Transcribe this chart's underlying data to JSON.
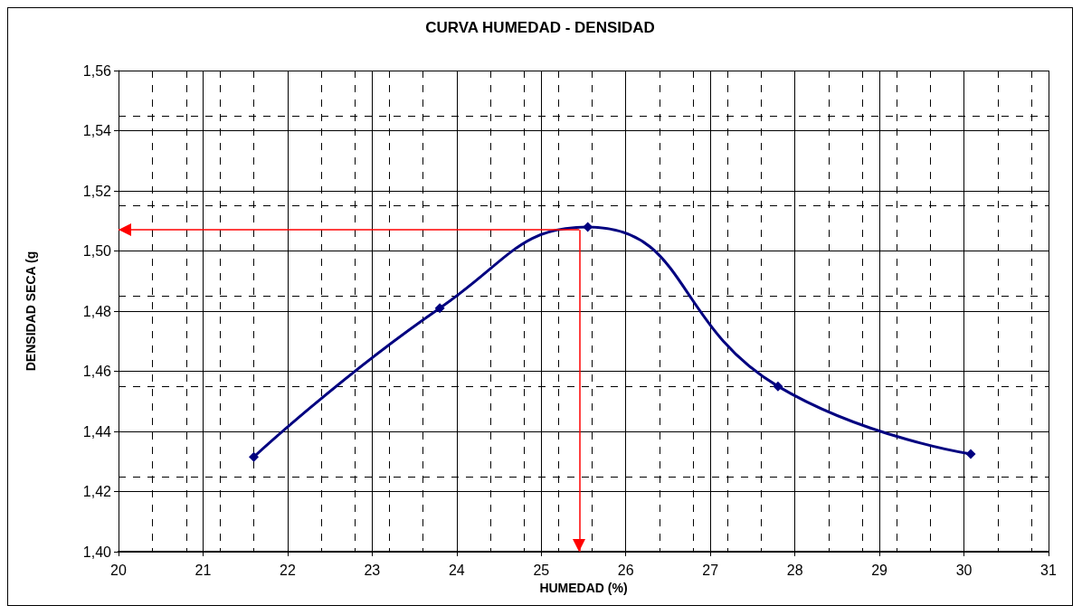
{
  "chart_data": {
    "type": "line",
    "title": "CURVA HUMEDAD - DENSIDAD",
    "xlabel": "HUMEDAD (%)",
    "ylabel": "DENSIDAD SECA (g",
    "x": [
      21.6,
      23.8,
      25.55,
      27.8,
      30.08
    ],
    "series": [
      {
        "color": "#000080",
        "values": [
          1.4315,
          1.481,
          1.508,
          1.455,
          1.4325
        ]
      }
    ],
    "xlim": [
      20,
      31
    ],
    "xticks": [
      20,
      21,
      22,
      23,
      24,
      25,
      26,
      27,
      28,
      29,
      30,
      31
    ],
    "ylim": [
      1.4,
      1.56
    ],
    "yticks": [
      {
        "value": 1.4,
        "label": "1,40"
      },
      {
        "value": 1.42,
        "label": "1,42"
      },
      {
        "value": 1.44,
        "label": "1,44"
      },
      {
        "value": 1.46,
        "label": "1,46"
      },
      {
        "value": 1.48,
        "label": "1,48"
      },
      {
        "value": 1.5,
        "label": "1,50"
      },
      {
        "value": 1.52,
        "label": "1,52"
      },
      {
        "value": 1.54,
        "label": "1,54"
      },
      {
        "value": 1.56,
        "label": "1,56"
      }
    ],
    "ref_lines": [
      {
        "axis": "y",
        "value": 1.507,
        "color": "#ff0000"
      },
      {
        "axis": "x",
        "value": 25.45,
        "color": "#ff0000"
      }
    ],
    "grid": true,
    "marker": "diamond",
    "line_style": "solid"
  }
}
